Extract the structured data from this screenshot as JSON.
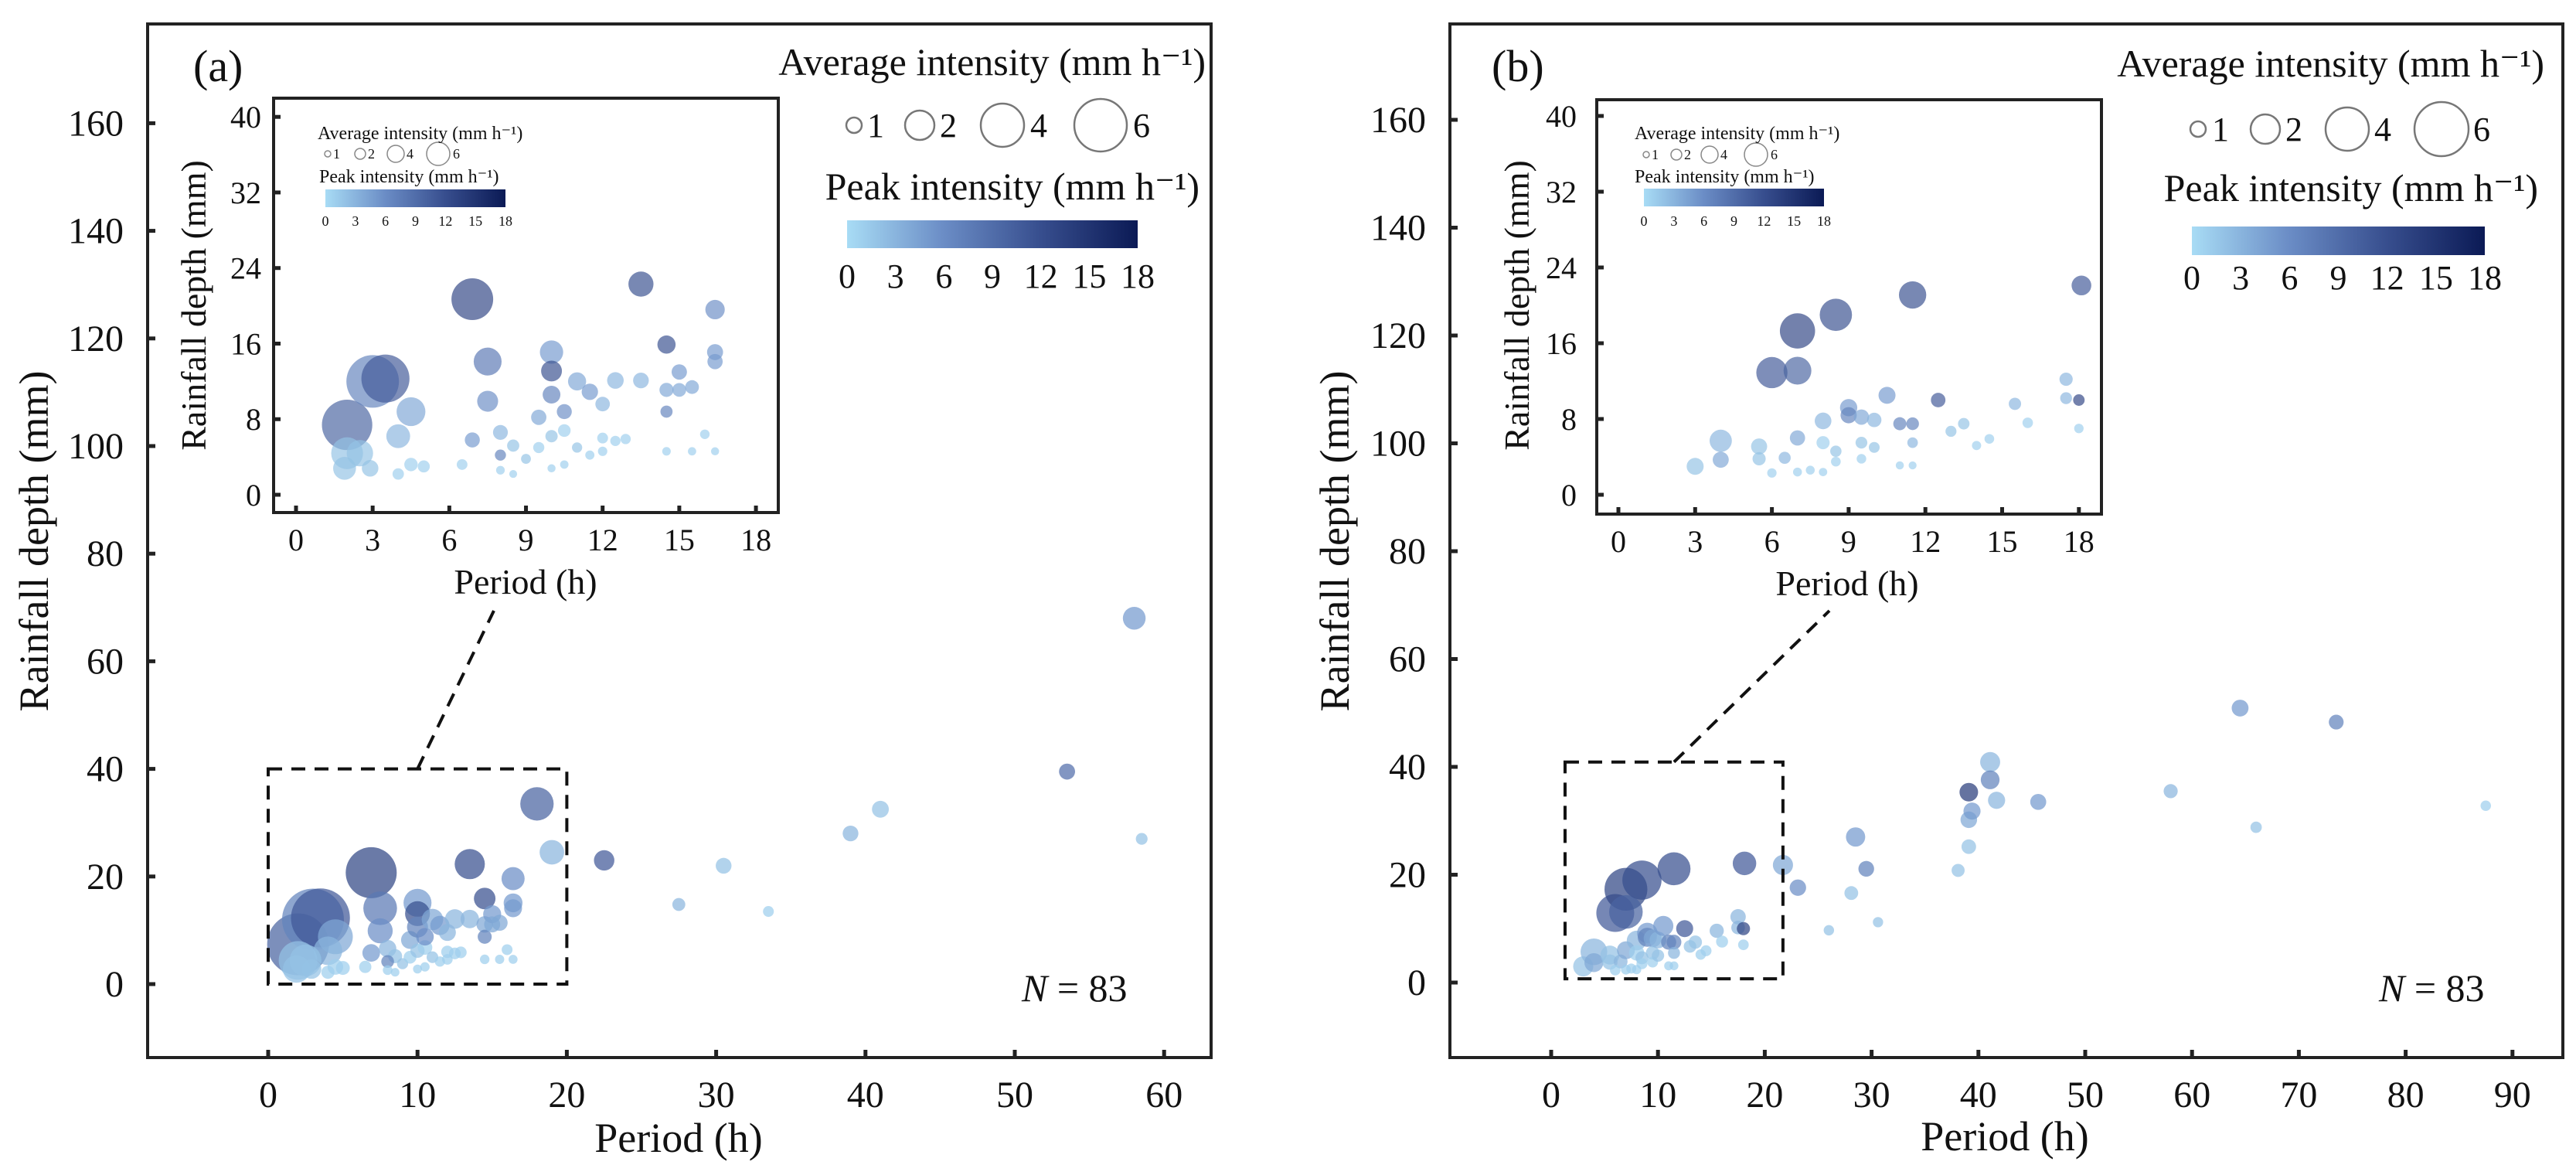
{
  "chart_data": [
    {
      "type": "scatter",
      "panel_label": "(a)",
      "xlabel": "Period (h)",
      "ylabel": "Rainfall depth (mm)",
      "xlim": [
        -8,
        63
      ],
      "ylim": [
        -14,
        176
      ],
      "xticks": [
        0,
        10,
        20,
        30,
        40,
        50,
        60
      ],
      "yticks": [
        0,
        20,
        40,
        60,
        80,
        100,
        120,
        140,
        160
      ],
      "annotation": "N = 83",
      "annotation_n": "N",
      "annotation_rest": " = 83",
      "size_legend": {
        "title": "Average intensity (mm h⁻¹)",
        "values": [
          "1",
          "2",
          "4",
          "6"
        ]
      },
      "color_legend": {
        "title": "Peak intensity (mm h⁻¹)",
        "ticks": [
          "0",
          "3",
          "6",
          "9",
          "12",
          "15",
          "18"
        ],
        "range": [
          0,
          18
        ]
      },
      "zoom_box": {
        "x": [
          0,
          20
        ],
        "y": [
          0,
          40
        ]
      },
      "inset": {
        "xlabel": "Period (h)",
        "ylabel": "Rainfall depth (mm)",
        "xlim": [
          -1,
          19.5
        ],
        "ylim": [
          -2,
          42
        ],
        "xticks": [
          0,
          3,
          6,
          9,
          12,
          15,
          18
        ],
        "yticks": [
          0,
          8,
          16,
          24,
          32,
          40
        ]
      },
      "fields": [
        "period_h",
        "depth_mm",
        "peak_intensity"
      ],
      "points": [
        [
          2.0,
          7.4,
          10
        ],
        [
          3.0,
          12.0,
          7
        ],
        [
          3.5,
          12.3,
          11
        ],
        [
          4.5,
          8.8,
          4
        ],
        [
          4.0,
          6.2,
          3
        ],
        [
          2.0,
          4.4,
          2
        ],
        [
          2.5,
          4.4,
          2
        ],
        [
          1.9,
          2.8,
          2
        ],
        [
          2.9,
          2.8,
          2
        ],
        [
          4.0,
          2.2,
          1
        ],
        [
          4.5,
          3.2,
          1
        ],
        [
          5.0,
          3.0,
          1
        ],
        [
          6.5,
          3.2,
          1
        ],
        [
          6.9,
          20.7,
          13
        ],
        [
          7.5,
          14.1,
          8
        ],
        [
          7.5,
          9.9,
          6
        ],
        [
          6.9,
          5.8,
          5
        ],
        [
          8.0,
          6.6,
          3
        ],
        [
          8.5,
          5.2,
          2
        ],
        [
          8.0,
          4.2,
          7
        ],
        [
          8.0,
          2.6,
          1
        ],
        [
          8.5,
          2.2,
          1
        ],
        [
          9.0,
          3.8,
          2
        ],
        [
          9.5,
          8.2,
          4
        ],
        [
          9.5,
          5.0,
          1
        ],
        [
          10.0,
          6.2,
          2
        ],
        [
          10.5,
          6.8,
          1
        ],
        [
          10.0,
          15.1,
          5
        ],
        [
          10.0,
          13.1,
          12
        ],
        [
          10.0,
          10.6,
          7
        ],
        [
          10.5,
          8.8,
          6
        ],
        [
          10.0,
          2.8,
          1
        ],
        [
          10.5,
          3.2,
          1
        ],
        [
          11.0,
          12.0,
          4
        ],
        [
          11.5,
          10.9,
          5
        ],
        [
          12.0,
          9.6,
          3
        ],
        [
          11.0,
          5.0,
          2
        ],
        [
          11.5,
          4.2,
          1
        ],
        [
          12.0,
          6.0,
          1
        ],
        [
          12.0,
          4.6,
          1
        ],
        [
          12.5,
          12.1,
          3
        ],
        [
          12.5,
          5.7,
          1
        ],
        [
          12.9,
          5.9,
          1
        ],
        [
          13.5,
          12.1,
          3
        ],
        [
          13.5,
          22.3,
          12
        ],
        [
          14.5,
          15.9,
          12
        ],
        [
          14.5,
          11.1,
          4
        ],
        [
          14.5,
          8.8,
          7
        ],
        [
          14.5,
          4.6,
          1
        ],
        [
          15.0,
          13.0,
          5
        ],
        [
          15.0,
          11.1,
          4
        ],
        [
          15.5,
          11.4,
          4
        ],
        [
          15.5,
          4.6,
          1
        ],
        [
          16.0,
          6.4,
          1
        ],
        [
          16.4,
          19.6,
          6
        ],
        [
          16.4,
          15.1,
          5
        ],
        [
          16.4,
          14.1,
          5
        ],
        [
          16.4,
          4.6,
          1
        ],
        [
          18.0,
          33.5,
          10
        ],
        [
          19.0,
          24.5,
          3
        ],
        [
          22.5,
          23.0,
          11
        ],
        [
          27.5,
          14.8,
          3
        ],
        [
          30.5,
          22.0,
          2
        ],
        [
          33.5,
          13.5,
          1
        ],
        [
          39.0,
          28.0,
          3
        ],
        [
          41.0,
          32.5,
          2
        ],
        [
          53.5,
          39.5,
          9
        ],
        [
          58.0,
          68.0,
          5
        ],
        [
          58.5,
          27.0,
          2
        ]
      ]
    },
    {
      "type": "scatter",
      "panel_label": "(b)",
      "xlabel": "Period (h)",
      "ylabel": "Rainfall depth (mm)",
      "xlim": [
        -9,
        95
      ],
      "ylim": [
        -14,
        176
      ],
      "xticks": [
        0,
        10,
        20,
        30,
        40,
        50,
        60,
        70,
        80,
        90
      ],
      "yticks": [
        0,
        20,
        40,
        60,
        80,
        100,
        120,
        140,
        160
      ],
      "annotation": "N = 83",
      "annotation_n": "N",
      "annotation_rest": " = 83",
      "size_legend": {
        "title": "Average intensity (mm h⁻¹)",
        "values": [
          "1",
          "2",
          "4",
          "6"
        ]
      },
      "color_legend": {
        "title": "Peak intensity (mm h⁻¹)",
        "ticks": [
          "0",
          "3",
          "6",
          "9",
          "12",
          "15",
          "18"
        ],
        "range": [
          0,
          18
        ]
      },
      "zoom_box": {
        "x": [
          1.3,
          21.7
        ],
        "y": [
          0.7,
          40.9
        ]
      },
      "inset": {
        "xlabel": "Period (h)",
        "ylabel": "Rainfall depth (mm)",
        "xlim": [
          -1,
          19.5
        ],
        "ylim": [
          -2,
          42
        ],
        "xticks": [
          0,
          3,
          6,
          9,
          12,
          15,
          18
        ],
        "yticks": [
          0,
          8,
          16,
          24,
          32,
          40
        ]
      },
      "fields": [
        "period_h",
        "depth_mm",
        "peak_intensity"
      ],
      "points": [
        [
          3.0,
          3.0,
          2
        ],
        [
          4.0,
          5.7,
          3
        ],
        [
          4.0,
          3.7,
          4
        ],
        [
          5.5,
          5.1,
          2
        ],
        [
          5.5,
          3.8,
          2
        ],
        [
          6.0,
          12.9,
          11
        ],
        [
          7.0,
          17.3,
          13
        ],
        [
          7.0,
          13.1,
          10
        ],
        [
          8.5,
          19.0,
          12
        ],
        [
          11.5,
          21.1,
          12
        ],
        [
          6.5,
          3.9,
          3
        ],
        [
          6.0,
          2.3,
          1
        ],
        [
          7.0,
          2.4,
          1
        ],
        [
          7.5,
          2.6,
          1
        ],
        [
          8.0,
          2.4,
          1
        ],
        [
          7.0,
          6.0,
          4
        ],
        [
          8.0,
          7.8,
          3
        ],
        [
          8.0,
          5.5,
          1
        ],
        [
          8.5,
          4.6,
          2
        ],
        [
          8.5,
          3.5,
          1
        ],
        [
          9.0,
          9.2,
          5
        ],
        [
          9.0,
          8.4,
          7
        ],
        [
          9.5,
          8.2,
          4
        ],
        [
          9.5,
          5.5,
          2
        ],
        [
          9.5,
          3.8,
          1
        ],
        [
          10.0,
          7.9,
          3
        ],
        [
          10.0,
          5.0,
          2
        ],
        [
          10.5,
          10.5,
          5
        ],
        [
          11.0,
          7.5,
          7
        ],
        [
          11.5,
          7.5,
          7
        ],
        [
          11.5,
          5.5,
          3
        ],
        [
          11.0,
          3.1,
          1
        ],
        [
          11.5,
          3.1,
          1
        ],
        [
          12.5,
          10.0,
          11
        ],
        [
          13.0,
          6.7,
          2
        ],
        [
          13.5,
          7.5,
          2
        ],
        [
          14.0,
          5.2,
          1
        ],
        [
          14.5,
          5.9,
          1
        ],
        [
          15.5,
          9.6,
          3
        ],
        [
          16.0,
          7.6,
          1
        ],
        [
          17.5,
          12.2,
          3
        ],
        [
          17.5,
          10.2,
          3
        ],
        [
          18.0,
          10.0,
          13
        ],
        [
          18.0,
          7.0,
          1
        ],
        [
          18.1,
          22.1,
          11
        ],
        [
          21.7,
          21.8,
          4
        ],
        [
          23.1,
          17.6,
          6
        ],
        [
          26.0,
          9.7,
          2
        ],
        [
          28.5,
          27.0,
          5
        ],
        [
          28.1,
          16.6,
          2
        ],
        [
          29.5,
          21.1,
          7
        ],
        [
          30.6,
          11.2,
          2
        ],
        [
          38.1,
          20.8,
          2
        ],
        [
          39.1,
          25.2,
          2
        ],
        [
          39.1,
          30.2,
          4
        ],
        [
          39.4,
          31.8,
          5
        ],
        [
          39.1,
          35.3,
          14
        ],
        [
          41.1,
          40.9,
          3
        ],
        [
          41.1,
          37.6,
          7
        ],
        [
          41.7,
          33.8,
          3
        ],
        [
          45.6,
          33.5,
          5
        ],
        [
          58.0,
          35.5,
          3
        ],
        [
          66.0,
          28.8,
          2
        ],
        [
          64.5,
          50.9,
          5
        ],
        [
          73.5,
          48.3,
          7
        ],
        [
          87.5,
          32.8,
          1
        ]
      ]
    }
  ],
  "colors": {
    "scale": [
      "#a8dcf5",
      "#6b8dc6",
      "#384f8f",
      "#0b1a55"
    ],
    "axis": "#222222",
    "legend_circle": "#777777"
  }
}
